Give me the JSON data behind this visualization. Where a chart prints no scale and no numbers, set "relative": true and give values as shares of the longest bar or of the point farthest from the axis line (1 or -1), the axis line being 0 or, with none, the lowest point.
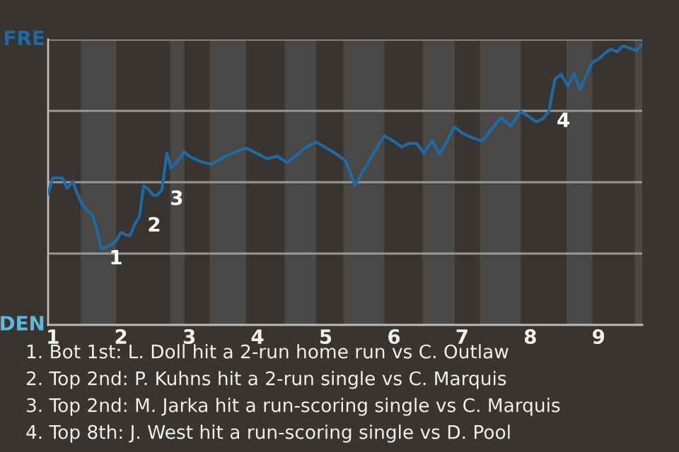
{
  "chart_data": {
    "type": "line",
    "relative": true,
    "x": [
      0.93,
      1,
      1.07,
      1.14,
      1.21,
      1.29,
      1.36,
      1.43,
      1.5,
      1.57,
      1.64,
      1.71,
      1.79,
      1.86,
      1.93,
      2,
      2.07,
      2.13,
      2.2,
      2.27,
      2.33,
      2.4,
      2.47,
      2.53,
      2.6,
      2.67,
      2.73,
      2.8,
      2.87,
      2.93,
      3,
      3.17,
      3.33,
      3.5,
      3.67,
      3.83,
      4,
      4.14,
      4.29,
      4.43,
      4.57,
      4.71,
      4.86,
      5,
      5.14,
      5.29,
      5.43,
      5.57,
      5.71,
      5.86,
      6,
      6.11,
      6.22,
      6.33,
      6.44,
      6.56,
      6.67,
      6.78,
      6.89,
      7,
      7.14,
      7.29,
      7.43,
      7.57,
      7.71,
      7.86,
      8,
      8.09,
      8.18,
      8.27,
      8.36,
      8.45,
      8.55,
      8.64,
      8.73,
      8.82,
      8.91,
      9,
      9.09,
      9.18,
      9.27,
      9.36,
      9.45,
      9.55,
      9.64
    ],
    "xlim": [
      0.93,
      9.64
    ],
    "xticks": [
      1,
      2,
      3,
      4,
      5,
      6,
      7,
      8,
      9
    ],
    "tick_labels": "x",
    "bands": [
      {
        "axis": "x",
        "from": 1.41,
        "to": 1.93,
        "color": "#4a4846"
      },
      {
        "axis": "x",
        "from": 2.72,
        "to": 2.93,
        "color": "#4a4846"
      },
      {
        "axis": "x",
        "from": 3.3,
        "to": 3.83,
        "color": "#4a4846"
      },
      {
        "axis": "x",
        "from": 4.4,
        "to": 4.86,
        "color": "#4a4846"
      },
      {
        "axis": "x",
        "from": 5.26,
        "to": 5.86,
        "color": "#4a4846"
      },
      {
        "axis": "x",
        "from": 6.42,
        "to": 6.89,
        "color": "#4a4846"
      },
      {
        "axis": "x",
        "from": 7.26,
        "to": 7.86,
        "color": "#4a4846"
      },
      {
        "axis": "x",
        "from": 8.53,
        "to": 8.91,
        "color": "#4a4846"
      },
      {
        "axis": "x",
        "from": 9.53,
        "to": 9.64,
        "color": "#4a4846"
      }
    ],
    "series": [
      {
        "color": "#1f6aa5",
        "values": [
          0.467,
          0.524,
          0.524,
          0.524,
          0.487,
          0.511,
          0.468,
          0.429,
          0.408,
          0.395,
          0.349,
          0.27,
          0.278,
          0.286,
          0.3,
          0.33,
          0.321,
          0.318,
          0.357,
          0.387,
          0.495,
          0.484,
          0.462,
          0.462,
          0.482,
          0.612,
          0.56,
          0.576,
          0.597,
          0.617,
          0.6,
          0.582,
          0.572,
          0.598,
          0.616,
          0.63,
          0.611,
          0.592,
          0.601,
          0.579,
          0.605,
          0.633,
          0.652,
          0.632,
          0.612,
          0.585,
          0.498,
          0.557,
          0.615,
          0.674,
          0.654,
          0.634,
          0.647,
          0.647,
          0.612,
          0.658,
          0.608,
          0.657,
          0.705,
          0.684,
          0.668,
          0.655,
          0.697,
          0.739,
          0.709,
          0.761,
          0.739,
          0.724,
          0.734,
          0.76,
          0.876,
          0.893,
          0.851,
          0.895,
          0.839,
          0.888,
          0.937,
          0.947,
          0.968,
          0.983,
          0.973,
          0.995,
          0.987,
          0.977,
          1
        ]
      }
    ],
    "grid": true,
    "annotations": [
      "FRE",
      "DEN",
      {
        "text": "1",
        "x": 1.71,
        "y": 0.27
      },
      {
        "text": "2",
        "x": 2.27,
        "y": 0.387
      },
      {
        "text": "3",
        "x": 2.6,
        "y": 0.482
      },
      {
        "text": "4",
        "x": 8.27,
        "y": 0.76
      },
      "1. Bot 1st: L. Doll hit a 2-run home run vs C. Outlaw",
      "2. Top 2nd: P. Kuhns hit a 2-run single vs C. Marquis",
      "3. Top 2nd: M. Jarka hit a run-scoring single vs C. Marquis",
      "4. Top 8th: J. West hit a run-scoring single vs D. Pool"
    ]
  }
}
